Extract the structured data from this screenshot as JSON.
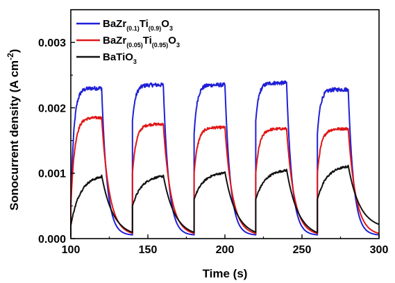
{
  "chart_data": {
    "type": "line",
    "xlabel": "Time (s)",
    "ylabel_main": "Sonocurrent density (A cm",
    "ylabel_sup": "-2",
    "ylabel_end": ")",
    "xlim": [
      100,
      300
    ],
    "ylim": [
      0,
      0.0035
    ],
    "x_ticks": [
      100,
      150,
      200,
      250,
      300
    ],
    "x_tick_labels": [
      "100",
      "150",
      "200",
      "250",
      "300"
    ],
    "y_ticks": [
      0,
      0.001,
      0.002,
      0.003
    ],
    "y_tick_labels": [
      "0.000",
      "0.001",
      "0.002",
      "0.003"
    ],
    "grid": false,
    "legend_position": "top-left",
    "on_intervals": [
      [
        100,
        120
      ],
      [
        140,
        160
      ],
      [
        180,
        200
      ],
      [
        220,
        240
      ],
      [
        260,
        280
      ]
    ],
    "series": [
      {
        "name_parts": [
          [
            "BaZr",
            "base"
          ],
          [
            "(0.1)",
            "sub"
          ],
          [
            "Ti",
            "base"
          ],
          [
            "(0.9)",
            "sub"
          ],
          [
            "O",
            "base"
          ],
          [
            "3",
            "sub"
          ]
        ],
        "color": "#1f1fd6",
        "on_start": [
          0.0005,
          0.0018,
          0.0016,
          0.0018,
          0.0016
        ],
        "plateau": [
          0.0023,
          0.00235,
          0.00235,
          0.00238,
          0.00228
        ],
        "off_end": [
          5e-05,
          5e-05,
          5e-05,
          5e-05,
          5e-05
        ],
        "tau_on": 2.0,
        "tau_off": 3.5,
        "noise": 3e-05
      },
      {
        "name_parts": [
          [
            "BaZr",
            "base"
          ],
          [
            "(0.05)",
            "sub"
          ],
          [
            "Ti",
            "base"
          ],
          [
            "(0.95)",
            "sub"
          ],
          [
            "O",
            "base"
          ],
          [
            "3",
            "sub"
          ]
        ],
        "color": "#e01616",
        "on_start": [
          0.0005,
          0.001,
          0.001,
          0.001,
          0.001
        ],
        "plateau": [
          0.00185,
          0.00175,
          0.0017,
          0.00168,
          0.00168
        ],
        "off_end": [
          5e-05,
          5e-05,
          5e-05,
          5e-05,
          5e-05
        ],
        "tau_on": 2.5,
        "tau_off": 5.0,
        "noise": 2e-05
      },
      {
        "name_parts": [
          [
            "BaTiO",
            "base"
          ],
          [
            "3",
            "sub"
          ]
        ],
        "color": "#111111",
        "on_start": [
          0.0002,
          0.0005,
          0.0006,
          0.0006,
          0.0006
        ],
        "plateau": [
          0.00097,
          0.00097,
          0.00102,
          0.00106,
          0.00112
        ],
        "off_end": [
          3e-05,
          3e-05,
          3e-05,
          2e-05,
          0.00015
        ],
        "tau_on": 6.0,
        "tau_off": 7.5,
        "noise": 1.5e-05
      }
    ]
  }
}
